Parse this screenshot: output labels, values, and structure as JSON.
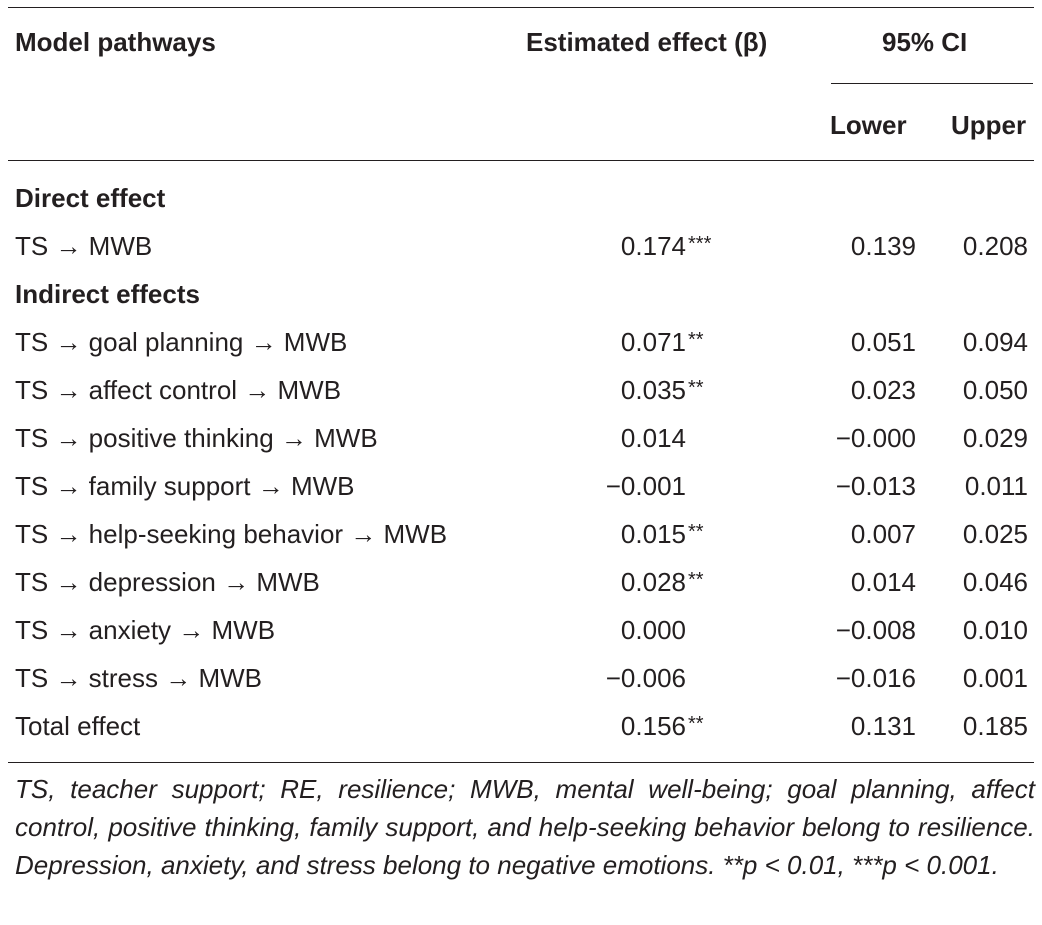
{
  "header": {
    "col_pathway": "Model pathways",
    "col_effect": "Estimated effect (β)",
    "col_ci": "95% CI",
    "col_lower": "Lower",
    "col_upper": "Upper"
  },
  "sections": {
    "direct": "Direct effect",
    "indirect": "Indirect effects"
  },
  "rows": [
    {
      "pathway": "TS → MWB",
      "effect": "0.174",
      "sig": "***",
      "lower": "0.139",
      "upper": "0.208"
    },
    {
      "pathway": "TS → goal planning → MWB",
      "effect": "0.071",
      "sig": "**",
      "lower": "0.051",
      "upper": "0.094"
    },
    {
      "pathway": "TS → affect control → MWB",
      "effect": "0.035",
      "sig": "**",
      "lower": "0.023",
      "upper": "0.050"
    },
    {
      "pathway": "TS → positive thinking → MWB",
      "effect": "0.014",
      "sig": "",
      "lower": "−0.000",
      "upper": "0.029"
    },
    {
      "pathway": "TS → family support → MWB",
      "effect": "−0.001",
      "sig": "",
      "lower": "−0.013",
      "upper": "0.011"
    },
    {
      "pathway": "TS → help-seeking behavior → MWB",
      "effect": "0.015",
      "sig": "**",
      "lower": "0.007",
      "upper": "0.025"
    },
    {
      "pathway": "TS → depression → MWB",
      "effect": "0.028",
      "sig": "**",
      "lower": "0.014",
      "upper": "0.046"
    },
    {
      "pathway": "TS → anxiety → MWB",
      "effect": "0.000",
      "sig": "",
      "lower": "−0.008",
      "upper": "0.010"
    },
    {
      "pathway": "TS → stress → MWB",
      "effect": "−0.006",
      "sig": "",
      "lower": "−0.016",
      "upper": "0.001"
    },
    {
      "pathway": "Total effect",
      "effect": "0.156",
      "sig": "**",
      "lower": "0.131",
      "upper": "0.185"
    }
  ],
  "footnote": "TS, teacher support; RE, resilience; MWB, mental well-being; goal planning, affect control, positive thinking, family support, and help-seeking behavior belong to resilience. Depression, anxiety, and stress belong to negative emotions. **p < 0.01, ***p < 0.001."
}
